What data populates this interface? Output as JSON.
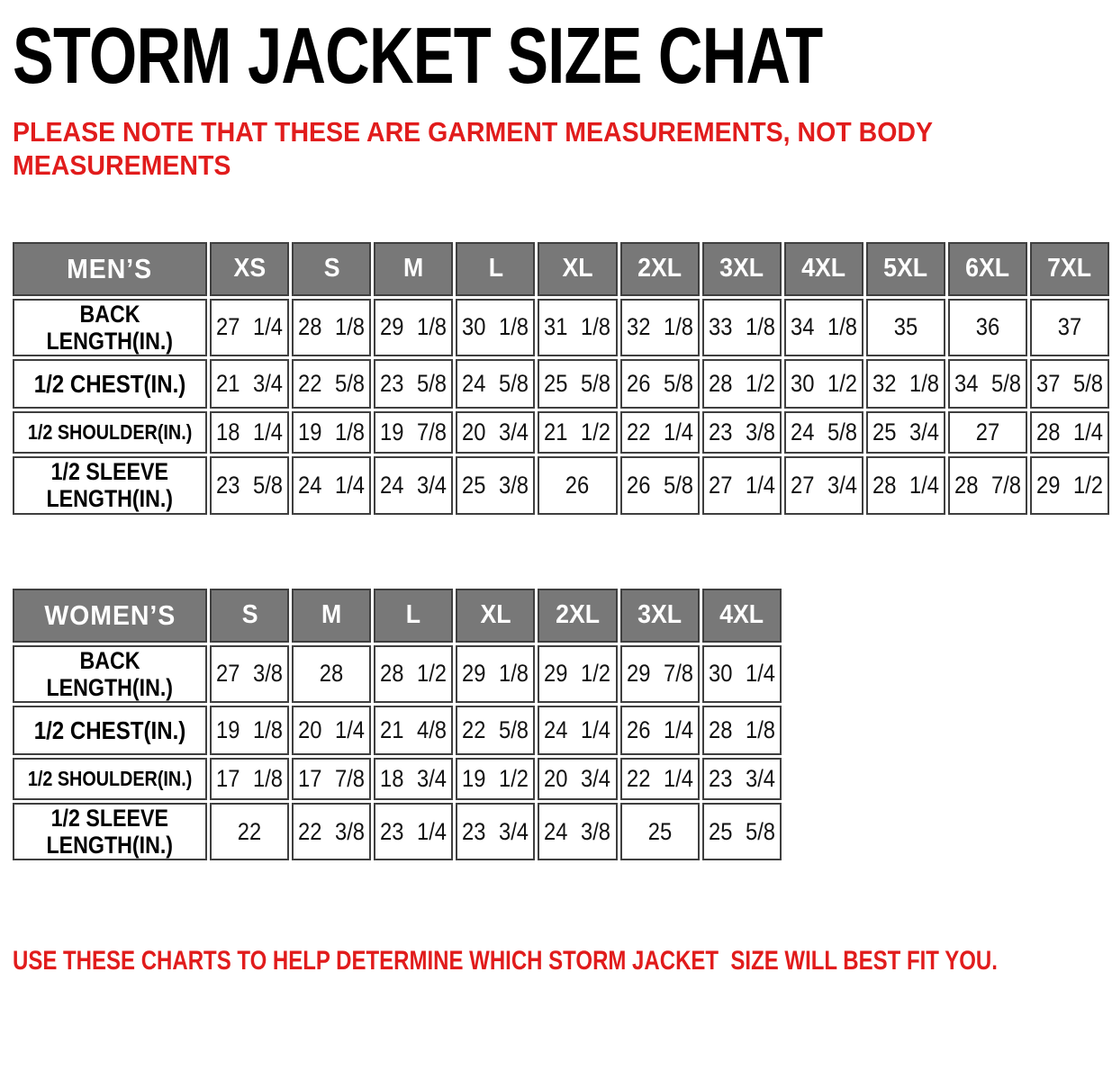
{
  "page": {
    "title": "STORM JACKET SIZE CHAT",
    "note_lines": [
      "PLEASE NOTE THAT THESE ARE GARMENT MEASUREMENTS, NOT BODY",
      "MEASUREMENTS"
    ],
    "footer": "USE THESE CHARTS TO HELP DETERMINE WHICH STORM JACKET  SIZE WILL BEST FIT YOU."
  },
  "colors": {
    "accent_red": "#e11c1c",
    "header_gray": "#787878",
    "border_gray": "#3f3f3f",
    "text_black": "#121212"
  },
  "tables": {
    "mens": {
      "name_label": "MEN’S",
      "sizes": [
        "XS",
        "S",
        "M",
        "L",
        "XL",
        "2XL",
        "3XL",
        "4XL",
        "5XL",
        "6XL",
        "7XL"
      ],
      "rows": [
        {
          "label_lines": [
            "BACK",
            "LENGTH(IN.)"
          ],
          "values": [
            "27 1/4",
            "28 1/8",
            "29 1/8",
            "30 1/8",
            "31 1/8",
            "32 1/8",
            "33 1/8",
            "34 1/8",
            "35",
            "36",
            "37"
          ]
        },
        {
          "label_lines": [
            "1/2 CHEST(IN.)"
          ],
          "values": [
            "21 3/4",
            "22 5/8",
            "23 5/8",
            "24 5/8",
            "25 5/8",
            "26 5/8",
            "28 1/2",
            "30 1/2",
            "32 1/8",
            "34 5/8",
            "37 5/8"
          ]
        },
        {
          "label_lines": [
            "1/2 SHOULDER(IN.)"
          ],
          "values": [
            "18 1/4",
            "19 1/8",
            "19 7/8",
            "20 3/4",
            "21 1/2",
            "22 1/4",
            "23 3/8",
            "24 5/8",
            "25 3/4",
            "27",
            "28 1/4"
          ]
        },
        {
          "label_lines": [
            "1/2 SLEEVE",
            "LENGTH(IN.)"
          ],
          "values": [
            "23 5/8",
            "24 1/4",
            "24 3/4",
            "25 3/8",
            "26",
            "26 5/8",
            "27 1/4",
            "27 3/4",
            "28 1/4",
            "28 7/8",
            "29 1/2"
          ]
        }
      ]
    },
    "womens": {
      "name_label": "WOMEN’S",
      "sizes": [
        "S",
        "M",
        "L",
        "XL",
        "2XL",
        "3XL",
        "4XL"
      ],
      "rows": [
        {
          "label_lines": [
            "BACK",
            "LENGTH(IN.)"
          ],
          "values": [
            "27 3/8",
            "28",
            "28 1/2",
            "29 1/8",
            "29 1/2",
            "29 7/8",
            "30 1/4"
          ]
        },
        {
          "label_lines": [
            "1/2 CHEST(IN.)"
          ],
          "values": [
            "19 1/8",
            "20 1/4",
            "21 4/8",
            "22 5/8",
            "24 1/4",
            "26 1/4",
            "28 1/8"
          ]
        },
        {
          "label_lines": [
            "1/2 SHOULDER(IN.)"
          ],
          "values": [
            "17 1/8",
            "17 7/8",
            "18 3/4",
            "19 1/2",
            "20 3/4",
            "22 1/4",
            "23 3/4"
          ]
        },
        {
          "label_lines": [
            "1/2 SLEEVE",
            "LENGTH(IN.)"
          ],
          "values": [
            "22",
            "22 3/8",
            "23 1/4",
            "23 3/4",
            "24 3/8",
            "25",
            "25 5/8"
          ]
        }
      ]
    }
  }
}
